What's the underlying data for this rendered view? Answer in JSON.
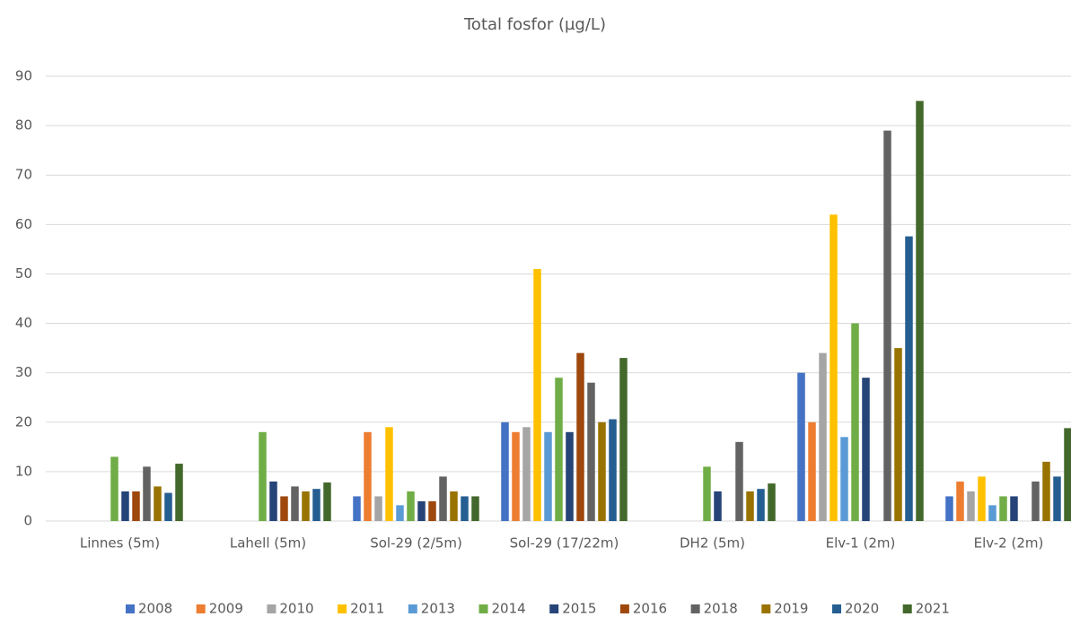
{
  "chart_data": {
    "type": "bar",
    "title": "Total fosfor (µg/L)",
    "categories": [
      "Linnes (5m)",
      "Lahell (5m)",
      "Sol-29 (2/5m)",
      "Sol-29 (17/22m)",
      "DH2 (5m)",
      "Elv-1 (2m)",
      "Elv-2 (2m)"
    ],
    "series": [
      {
        "name": "2008",
        "color": "#4472c4",
        "values": [
          null,
          null,
          5,
          20,
          null,
          30,
          5
        ]
      },
      {
        "name": "2009",
        "color": "#ed7d31",
        "values": [
          null,
          null,
          18,
          18,
          null,
          20,
          8
        ]
      },
      {
        "name": "2010",
        "color": "#a5a5a5",
        "values": [
          null,
          null,
          5,
          19,
          null,
          34,
          6
        ]
      },
      {
        "name": "2011",
        "color": "#ffc000",
        "values": [
          null,
          null,
          19,
          51,
          null,
          62,
          9
        ]
      },
      {
        "name": "2013",
        "color": "#5b9bd5",
        "values": [
          null,
          null,
          3.2,
          18,
          null,
          17,
          3.2
        ]
      },
      {
        "name": "2014",
        "color": "#70ad47",
        "values": [
          13,
          18,
          6,
          29,
          11,
          40,
          5
        ]
      },
      {
        "name": "2015",
        "color": "#264478",
        "values": [
          6,
          8,
          4,
          18,
          6,
          29,
          5
        ]
      },
      {
        "name": "2016",
        "color": "#9e480e",
        "values": [
          6,
          5,
          4,
          34,
          null,
          null,
          null
        ]
      },
      {
        "name": "2018",
        "color": "#636363",
        "values": [
          11,
          7,
          9,
          28,
          16,
          79,
          8
        ]
      },
      {
        "name": "2019",
        "color": "#997300",
        "values": [
          7,
          6,
          6,
          20,
          6,
          35,
          12
        ]
      },
      {
        "name": "2020",
        "color": "#255e91",
        "values": [
          5.7,
          6.5,
          5,
          20.6,
          6.5,
          57.6,
          9
        ]
      },
      {
        "name": "2021",
        "color": "#43682b",
        "values": [
          11.6,
          7.8,
          5,
          33,
          7.6,
          85,
          18.8
        ]
      }
    ],
    "ylim": [
      0,
      90
    ],
    "yticks": [
      0,
      10,
      20,
      30,
      40,
      50,
      60,
      70,
      80,
      90
    ],
    "grid": true,
    "legend": "bottom"
  }
}
